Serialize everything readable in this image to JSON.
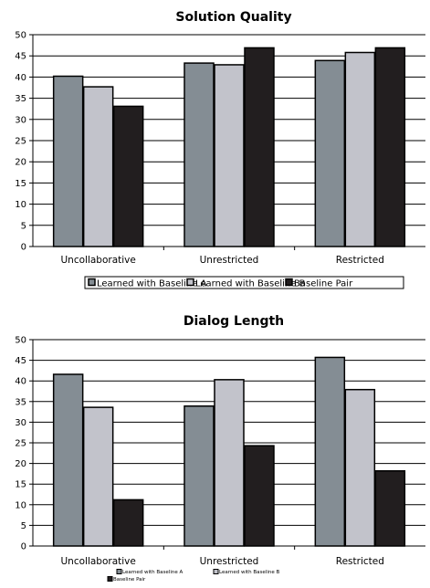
{
  "chart_data": [
    {
      "type": "bar",
      "title": "Solution Quality",
      "categories": [
        "Uncollaborative",
        "Unrestricted",
        "Restricted"
      ],
      "ylim": [
        0,
        50
      ],
      "yticks": [
        0,
        5,
        10,
        15,
        20,
        25,
        30,
        35,
        40,
        45,
        50
      ],
      "grid": true,
      "legend_position": "bottom",
      "series": [
        {
          "name": "Learned with Baseline A",
          "color": "#848d94",
          "values": [
            40.2,
            43.3,
            43.9
          ]
        },
        {
          "name": "Learned with Baseline B",
          "color": "#c2c3cb",
          "values": [
            37.7,
            42.9,
            45.8
          ]
        },
        {
          "name": "Baseline Pair",
          "color": "#221e1f",
          "values": [
            33.1,
            46.9,
            46.9
          ]
        }
      ]
    },
    {
      "type": "bar",
      "title": "Dialog Length",
      "categories": [
        "Uncollaborative",
        "Unrestricted",
        "Restricted"
      ],
      "ylim": [
        0,
        50
      ],
      "yticks": [
        0,
        5,
        10,
        15,
        20,
        25,
        30,
        35,
        40,
        45,
        50
      ],
      "grid": true,
      "legend_position": "bottom",
      "series": [
        {
          "name": "Learned with Baseline A",
          "color": "#848d94",
          "values": [
            41.6,
            33.9,
            45.7
          ]
        },
        {
          "name": "Learned with Baseline B",
          "color": "#c2c3cb",
          "values": [
            33.6,
            40.3,
            37.9
          ]
        },
        {
          "name": "Baseline Pair",
          "color": "#221e1f",
          "values": [
            11.2,
            24.3,
            18.2
          ]
        }
      ]
    }
  ]
}
